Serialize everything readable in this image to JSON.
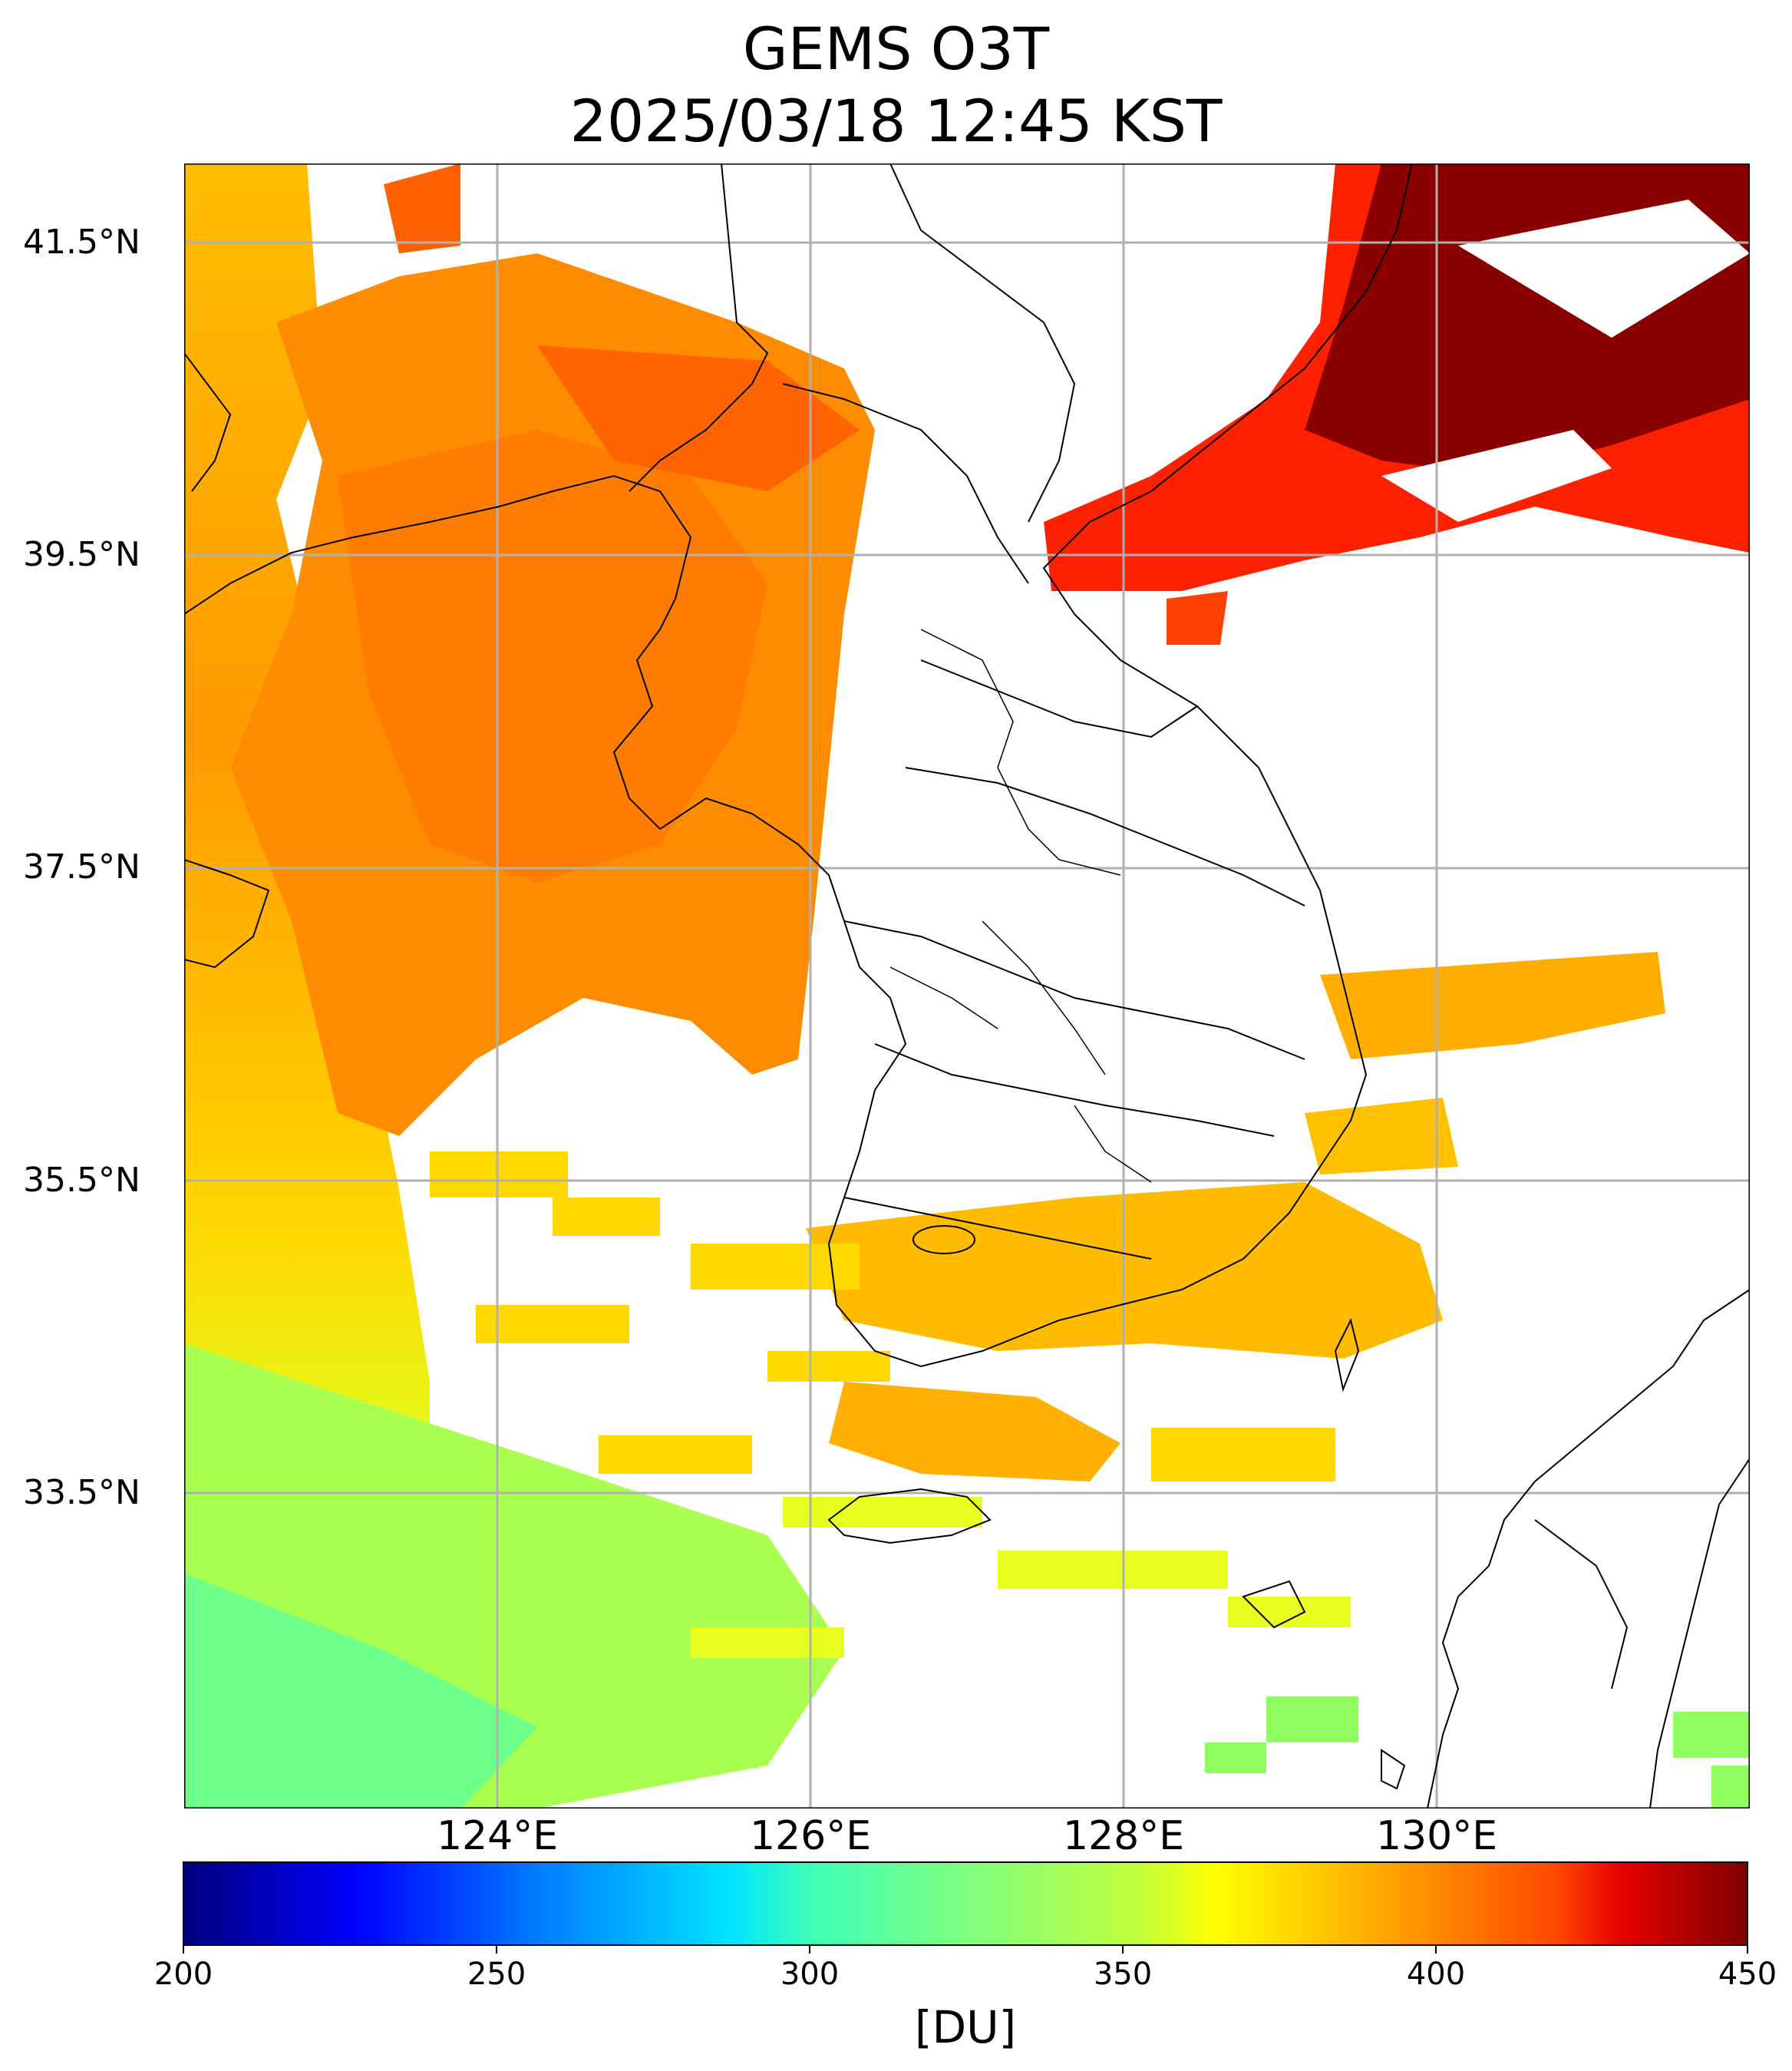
{
  "title": {
    "line1": "GEMS O3T",
    "line2": "2025/03/18 12:45 KST"
  },
  "map": {
    "product": "O3T",
    "lon_range": [
      121.9,
      131.9
    ],
    "lat_range": [
      31.2,
      41.85
    ],
    "gridlines": true,
    "lat_ticks": [
      "41.5°N",
      "39.5°N",
      "37.5°N",
      "35.5°N",
      "33.5°N"
    ],
    "lon_ticks": [
      "124°E",
      "126°E",
      "128°E",
      "130°E"
    ],
    "coastline_color": "#000000",
    "no_data_color": "#ffffff"
  },
  "colorbar": {
    "colormap": "jet",
    "min": 200,
    "max": 450,
    "tick_labels": [
      "200",
      "250",
      "300",
      "350",
      "400",
      "450"
    ],
    "unit_label": "[DU]"
  }
}
